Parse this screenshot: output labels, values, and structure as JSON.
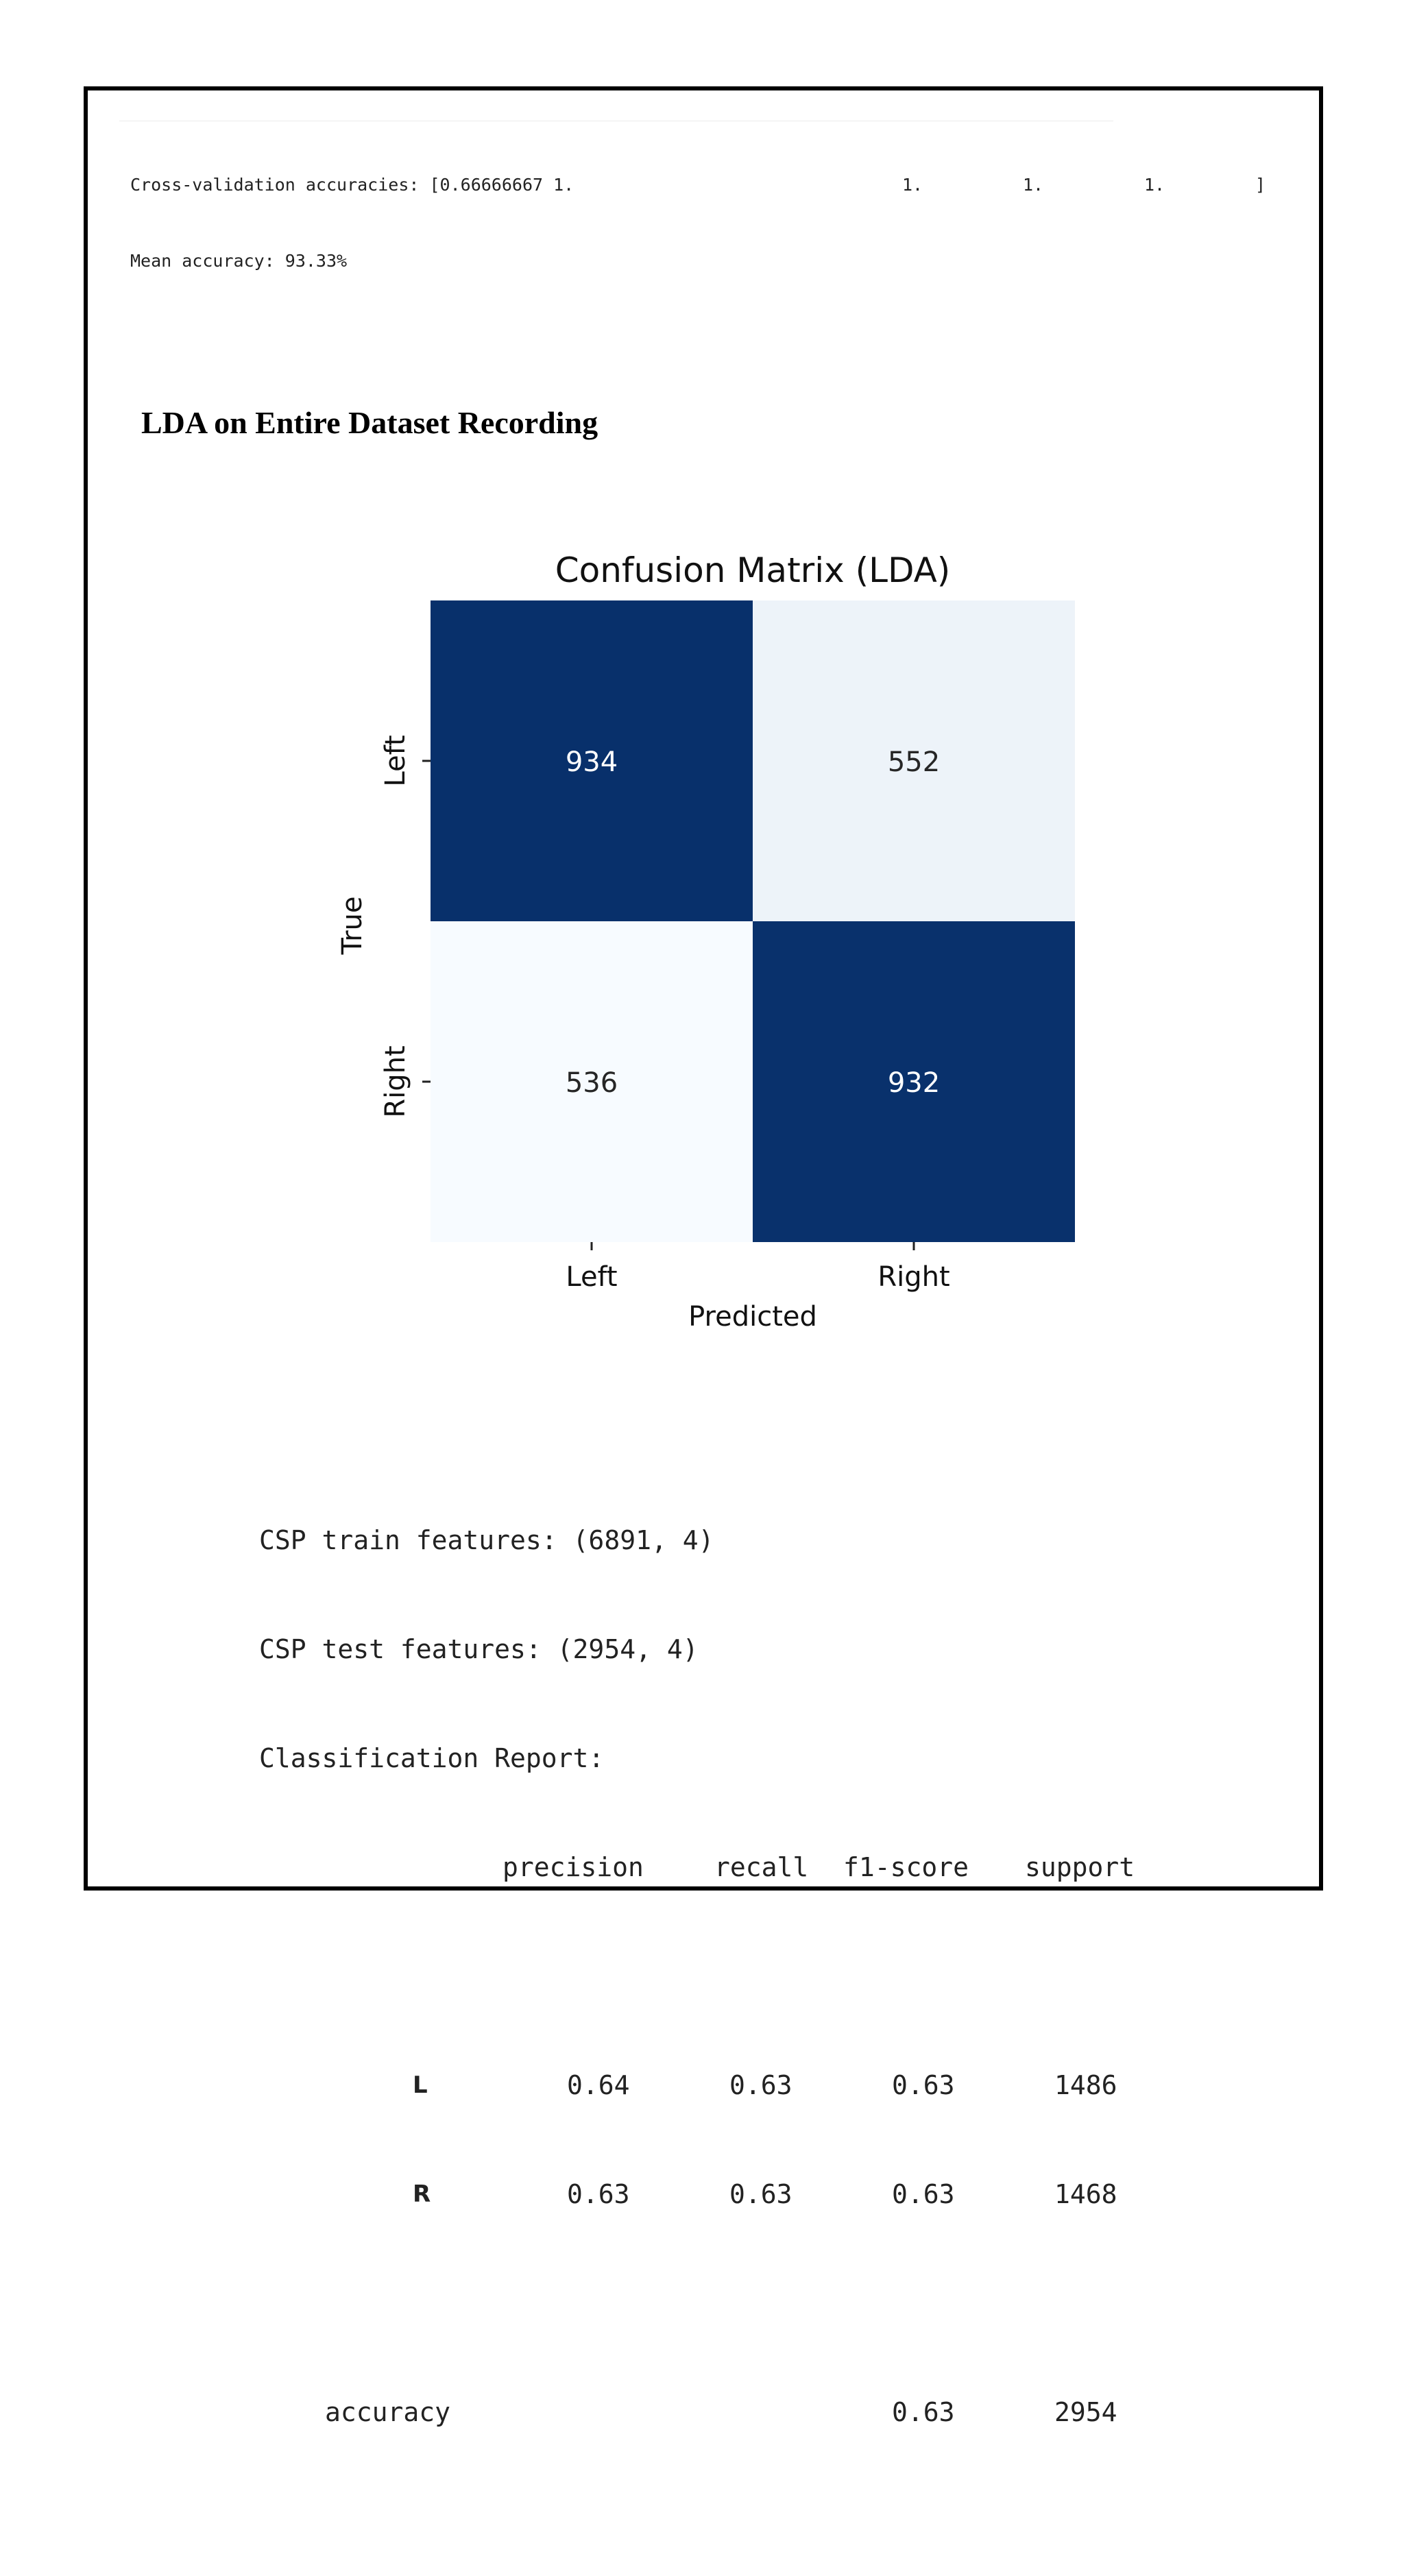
{
  "cross_validation": {
    "line1_prefix": "Cross-validation accuracies: [0.66666667 1.",
    "line1_values": [
      "1.",
      "1.",
      "1.",
      "]"
    ],
    "line2": "Mean accuracy: 93.33%"
  },
  "section_heading": "LDA on Entire Dataset Recording",
  "chart_data": {
    "type": "heatmap",
    "title": "Confusion Matrix (LDA)",
    "xlabel": "Predicted",
    "ylabel": "True",
    "x_categories": [
      "Left",
      "Right"
    ],
    "y_categories": [
      "Left",
      "Right"
    ],
    "values": [
      [
        934,
        552
      ],
      [
        536,
        932
      ]
    ],
    "colormap": "Blues",
    "color_low": "#f7fbff",
    "color_high": "#08306b",
    "colorbar": false,
    "annotations": true
  },
  "report": {
    "train_features": "CSP train features: (6891, 4)",
    "test_features": "CSP test features: (2954, 4)",
    "title": "Classification Report:",
    "headers": [
      "precision",
      "recall",
      "f1-score",
      "support"
    ],
    "rows": [
      {
        "label": "L",
        "precision": "0.64",
        "recall": "0.63",
        "f1": "0.63",
        "support": "1486"
      },
      {
        "label": "R",
        "precision": "0.63",
        "recall": "0.63",
        "f1": "0.63",
        "support": "1468"
      }
    ],
    "accuracy": {
      "label": "accuracy",
      "f1": "0.63",
      "support": "2954"
    }
  }
}
